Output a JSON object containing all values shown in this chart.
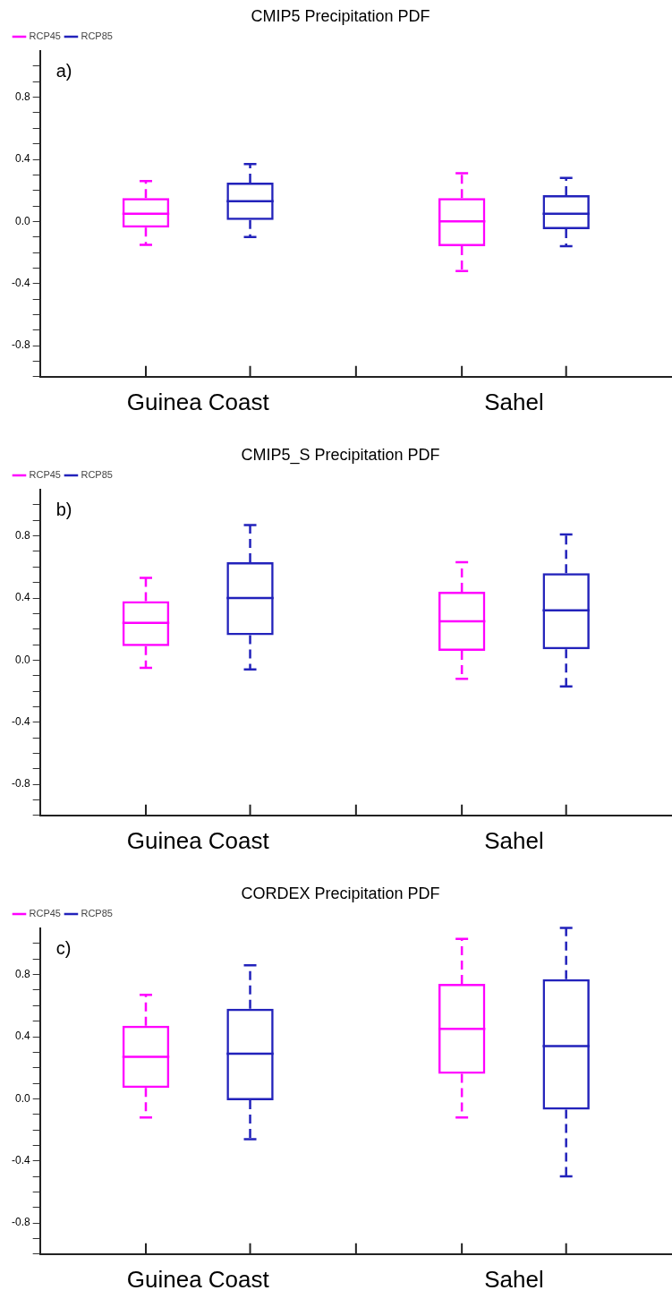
{
  "chart_data": [
    {
      "type": "box",
      "title": "CMIP5 Precipitation PDF",
      "categories": [
        "Guinea Coast",
        "Sahel"
      ],
      "legend": "top left",
      "annotations": [
        "a)"
      ],
      "ylim": [
        -1,
        1.1
      ],
      "yticks": [
        {
          "value": -1,
          "label": null
        },
        {
          "value": -0.9,
          "label": null
        },
        -0.8,
        {
          "value": -0.7,
          "label": null
        },
        {
          "value": -0.6,
          "label": null
        },
        {
          "value": -0.5,
          "label": null
        },
        -0.4,
        {
          "value": -0.3,
          "label": null
        },
        {
          "value": -0.2,
          "label": null
        },
        {
          "value": -0.1,
          "label": null
        },
        {
          "value": 0,
          "label": "0.0"
        },
        {
          "value": 0.1,
          "label": null
        },
        {
          "value": 0.2,
          "label": null
        },
        {
          "value": 0.3,
          "label": null
        },
        0.4,
        {
          "value": 0.5,
          "label": null
        },
        {
          "value": 0.6,
          "label": null
        },
        {
          "value": 0.7,
          "label": null
        },
        0.8,
        {
          "value": 0.9,
          "label": null
        },
        {
          "value": 1,
          "label": null
        }
      ],
      "series": [
        {
          "name": "RCP45",
          "color": "#ff00ff",
          "boxes": [
            {
              "low": -0.15,
              "q1": -0.04,
              "median": 0.05,
              "q3": 0.15,
              "high": 0.26
            },
            {
              "low": -0.32,
              "q1": -0.16,
              "median": 0.0,
              "q3": 0.15,
              "high": 0.31
            }
          ]
        },
        {
          "name": "RCP85",
          "color": "#2222bb",
          "boxes": [
            {
              "low": -0.1,
              "q1": 0.01,
              "median": 0.13,
              "q3": 0.25,
              "high": 0.37
            },
            {
              "low": -0.16,
              "q1": -0.05,
              "median": 0.05,
              "q3": 0.17,
              "high": 0.28
            }
          ]
        }
      ]
    },
    {
      "type": "box",
      "title": "CMIP5_S Precipitation PDF",
      "categories": [
        "Guinea Coast",
        "Sahel"
      ],
      "legend": "top left",
      "annotations": [
        "b)"
      ],
      "ylim": [
        -1,
        1.1
      ],
      "yticks": [
        {
          "value": -1,
          "label": null
        },
        {
          "value": -0.9,
          "label": null
        },
        -0.8,
        {
          "value": -0.7,
          "label": null
        },
        {
          "value": -0.6,
          "label": null
        },
        {
          "value": -0.5,
          "label": null
        },
        -0.4,
        {
          "value": -0.3,
          "label": null
        },
        {
          "value": -0.2,
          "label": null
        },
        {
          "value": -0.1,
          "label": null
        },
        {
          "value": 0,
          "label": "0.0"
        },
        {
          "value": 0.1,
          "label": null
        },
        {
          "value": 0.2,
          "label": null
        },
        {
          "value": 0.3,
          "label": null
        },
        0.4,
        {
          "value": 0.5,
          "label": null
        },
        {
          "value": 0.6,
          "label": null
        },
        {
          "value": 0.7,
          "label": null
        },
        0.8,
        {
          "value": 0.9,
          "label": null
        },
        {
          "value": 1,
          "label": null
        }
      ],
      "series": [
        {
          "name": "RCP45",
          "color": "#ff00ff",
          "boxes": [
            {
              "low": -0.05,
              "q1": 0.09,
              "median": 0.24,
              "q3": 0.38,
              "high": 0.53
            },
            {
              "low": -0.12,
              "q1": 0.06,
              "median": 0.25,
              "q3": 0.44,
              "high": 0.63
            }
          ]
        },
        {
          "name": "RCP85",
          "color": "#2222bb",
          "boxes": [
            {
              "low": -0.06,
              "q1": 0.16,
              "median": 0.4,
              "q3": 0.63,
              "high": 0.87
            },
            {
              "low": -0.17,
              "q1": 0.07,
              "median": 0.32,
              "q3": 0.56,
              "high": 0.81
            }
          ]
        }
      ]
    },
    {
      "type": "box",
      "title": "CORDEX Precipitation PDF",
      "categories": [
        "Guinea Coast",
        "Sahel"
      ],
      "legend": "top left",
      "annotations": [
        "c)"
      ],
      "ylim": [
        -1,
        1.1
      ],
      "yticks": [
        {
          "value": -1,
          "label": null
        },
        {
          "value": -0.9,
          "label": null
        },
        -0.8,
        {
          "value": -0.7,
          "label": null
        },
        {
          "value": -0.6,
          "label": null
        },
        {
          "value": -0.5,
          "label": null
        },
        -0.4,
        {
          "value": -0.3,
          "label": null
        },
        {
          "value": -0.2,
          "label": null
        },
        {
          "value": -0.1,
          "label": null
        },
        {
          "value": 0,
          "label": "0.0"
        },
        {
          "value": 0.1,
          "label": null
        },
        {
          "value": 0.2,
          "label": null
        },
        {
          "value": 0.3,
          "label": null
        },
        0.4,
        {
          "value": 0.5,
          "label": null
        },
        {
          "value": 0.6,
          "label": null
        },
        {
          "value": 0.7,
          "label": null
        },
        0.8,
        {
          "value": 0.9,
          "label": null
        },
        {
          "value": 1,
          "label": null
        }
      ],
      "series": [
        {
          "name": "RCP45",
          "color": "#ff00ff",
          "boxes": [
            {
              "low": -0.12,
              "q1": 0.07,
              "median": 0.27,
              "q3": 0.47,
              "high": 0.67
            },
            {
              "low": -0.12,
              "q1": 0.16,
              "median": 0.45,
              "q3": 0.74,
              "high": 1.03
            }
          ]
        },
        {
          "name": "RCP85",
          "color": "#2222bb",
          "boxes": [
            {
              "low": -0.26,
              "q1": -0.01,
              "median": 0.29,
              "q3": 0.58,
              "high": 0.86
            },
            {
              "low": -0.5,
              "q1": -0.07,
              "median": 0.34,
              "q3": 0.77,
              "high": 1.1
            }
          ]
        }
      ]
    }
  ]
}
